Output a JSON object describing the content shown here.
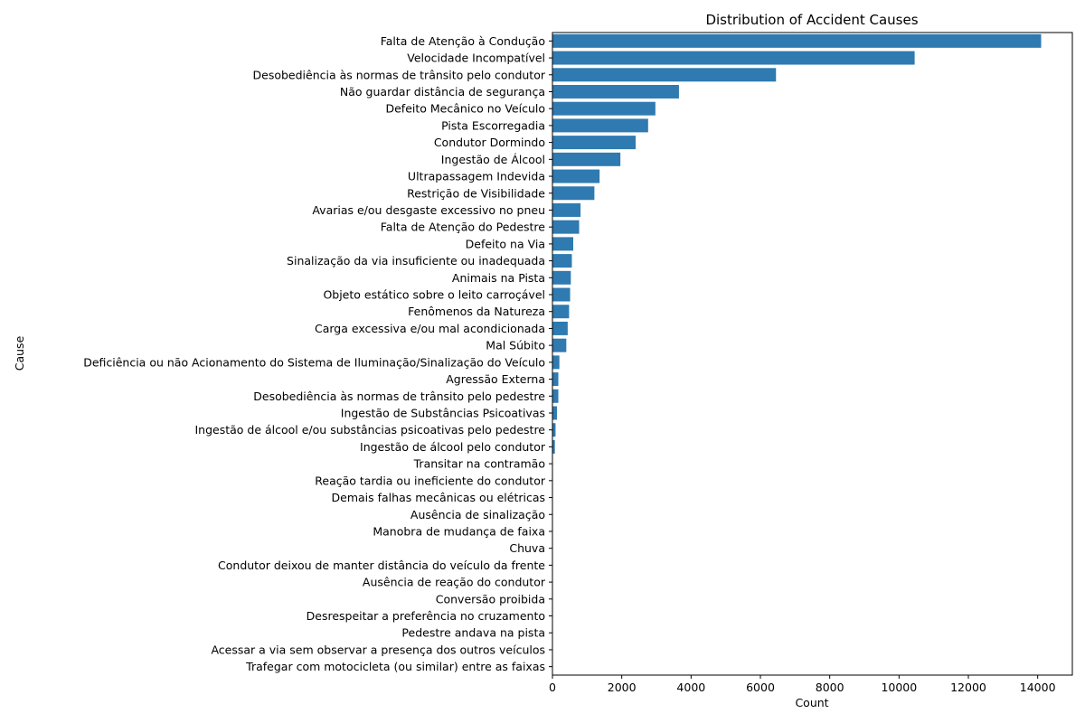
{
  "chart_data": {
    "type": "bar",
    "orientation": "horizontal",
    "title": "Distribution of Accident Causes",
    "xlabel": "Count",
    "ylabel": "Cause",
    "xlim": [
      0,
      15000
    ],
    "xticks": [
      0,
      2000,
      4000,
      6000,
      8000,
      10000,
      12000,
      14000
    ],
    "bar_color": "#2e7ab1",
    "grid": false,
    "categories": [
      "Falta de Atenção à Condução",
      "Velocidade Incompatível",
      "Desobediência às normas de trânsito pelo condutor",
      "Não guardar distância de segurança",
      "Defeito Mecânico no Veículo",
      "Pista Escorregadia",
      "Condutor Dormindo",
      "Ingestão de Álcool",
      "Ultrapassagem Indevida",
      "Restrição de Visibilidade",
      "Avarias e/ou desgaste excessivo no pneu",
      "Falta de Atenção do Pedestre",
      "Defeito na Via",
      "Sinalização da via insuficiente ou inadequada",
      "Animais na Pista",
      "Objeto estático sobre o leito carroçável",
      "Fenômenos da Natureza",
      "Carga excessiva e/ou mal acondicionada",
      "Mal Súbito",
      "Deficiência ou não Acionamento do Sistema de Iluminação/Sinalização do Veículo",
      "Agressão Externa",
      "Desobediência às normas de trânsito pelo pedestre",
      "Ingestão de Substâncias Psicoativas",
      "Ingestão de álcool e/ou substâncias psicoativas pelo pedestre",
      "Ingestão de álcool pelo condutor",
      "Transitar na contramão",
      "Reação tardia ou ineficiente do condutor",
      "Demais falhas mecânicas ou elétricas",
      "Ausência de sinalização",
      "Manobra de mudança de faixa",
      "Chuva",
      "Condutor deixou de manter distância do veículo da frente",
      "Ausência de reação do condutor",
      "Conversão proibida",
      "Desrespeitar a preferência no cruzamento",
      "Pedestre andava na pista",
      "Acessar a via sem observar a presença dos outros veículos",
      "Trafegar com motocicleta (ou similar) entre as faixas"
    ],
    "values": [
      14100,
      10450,
      6450,
      3650,
      2970,
      2760,
      2400,
      1960,
      1360,
      1210,
      810,
      770,
      600,
      560,
      530,
      510,
      480,
      440,
      400,
      200,
      170,
      170,
      130,
      90,
      70,
      10,
      8,
      6,
      5,
      4,
      3,
      3,
      2,
      2,
      2,
      1,
      1,
      1
    ]
  }
}
